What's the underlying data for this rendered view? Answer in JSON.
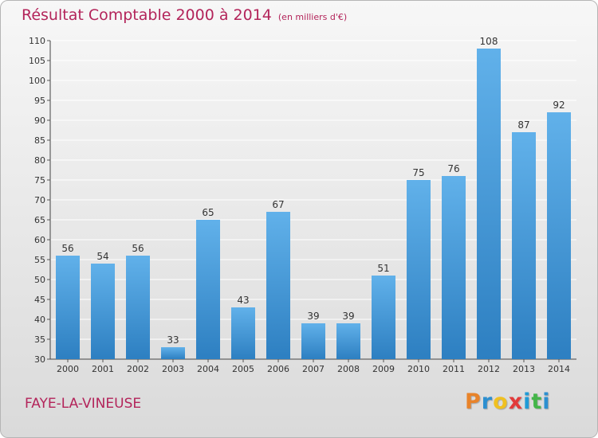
{
  "header": {
    "title": "Résultat Comptable 2000 à 2014",
    "unit": "(en milliers d'€)"
  },
  "footer": {
    "commune": "FAYE-LA-VINEUSE",
    "brand": "Proxiti",
    "brand_colors": [
      "#e8832a",
      "#2c8fd0",
      "#f0c020",
      "#e23b3b",
      "#1f9bd6",
      "#44b549",
      "#2c8fd0"
    ]
  },
  "colors": {
    "bar_top": "#61b1ea",
    "bar_bottom": "#2d7fc1",
    "title": "#b3245a",
    "grid": "#ffffff"
  },
  "chart_data": {
    "type": "bar",
    "title": "Résultat Comptable 2000 à 2014",
    "xlabel": "",
    "ylabel": "",
    "categories": [
      "2000",
      "2001",
      "2002",
      "2003",
      "2004",
      "2005",
      "2006",
      "2007",
      "2008",
      "2009",
      "2010",
      "2011",
      "2012",
      "2013",
      "2014"
    ],
    "values": [
      56,
      54,
      56,
      33,
      65,
      43,
      67,
      39,
      39,
      51,
      75,
      76,
      108,
      87,
      92
    ],
    "ylim": [
      30,
      110
    ],
    "yticks": [
      30,
      35,
      40,
      45,
      50,
      55,
      60,
      65,
      70,
      75,
      80,
      85,
      90,
      95,
      100,
      105,
      110
    ],
    "grid": true,
    "data_labels": true
  }
}
